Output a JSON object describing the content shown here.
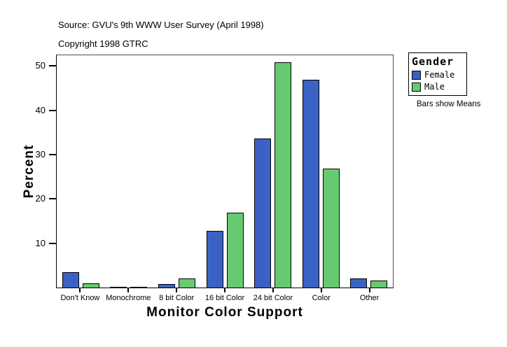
{
  "header": {
    "source_line": "Source: GVU's 9th WWW User Survey (April 1998)",
    "copyright_line": "Copyright 1998 GTRC"
  },
  "legend": {
    "title": "Gender",
    "items": [
      {
        "label": "Female",
        "color": "#3a62c4"
      },
      {
        "label": "Male",
        "color": "#66cb70"
      }
    ],
    "note": "Bars show Means"
  },
  "chart_data": {
    "type": "bar",
    "title": "",
    "xlabel": "Monitor Color Support",
    "ylabel": "Percent",
    "categories": [
      "Don't Know",
      "Monochrome",
      "8 bit Color",
      "16 bit Color",
      "24 bit Color",
      "Color",
      "Other"
    ],
    "series": [
      {
        "name": "Female",
        "color": "#3a62c4",
        "values": [
          3.5,
          0.2,
          0.8,
          12.8,
          33.6,
          46.9,
          2.0
        ]
      },
      {
        "name": "Male",
        "color": "#66cb70",
        "values": [
          1.0,
          0.2,
          2.0,
          16.9,
          50.8,
          26.8,
          1.5
        ]
      }
    ],
    "ylim": [
      0,
      52.4
    ],
    "yticks": [
      10,
      20,
      30,
      40,
      50
    ],
    "grid": false,
    "legend_position": "right",
    "bar_edge_color": "#000000"
  }
}
